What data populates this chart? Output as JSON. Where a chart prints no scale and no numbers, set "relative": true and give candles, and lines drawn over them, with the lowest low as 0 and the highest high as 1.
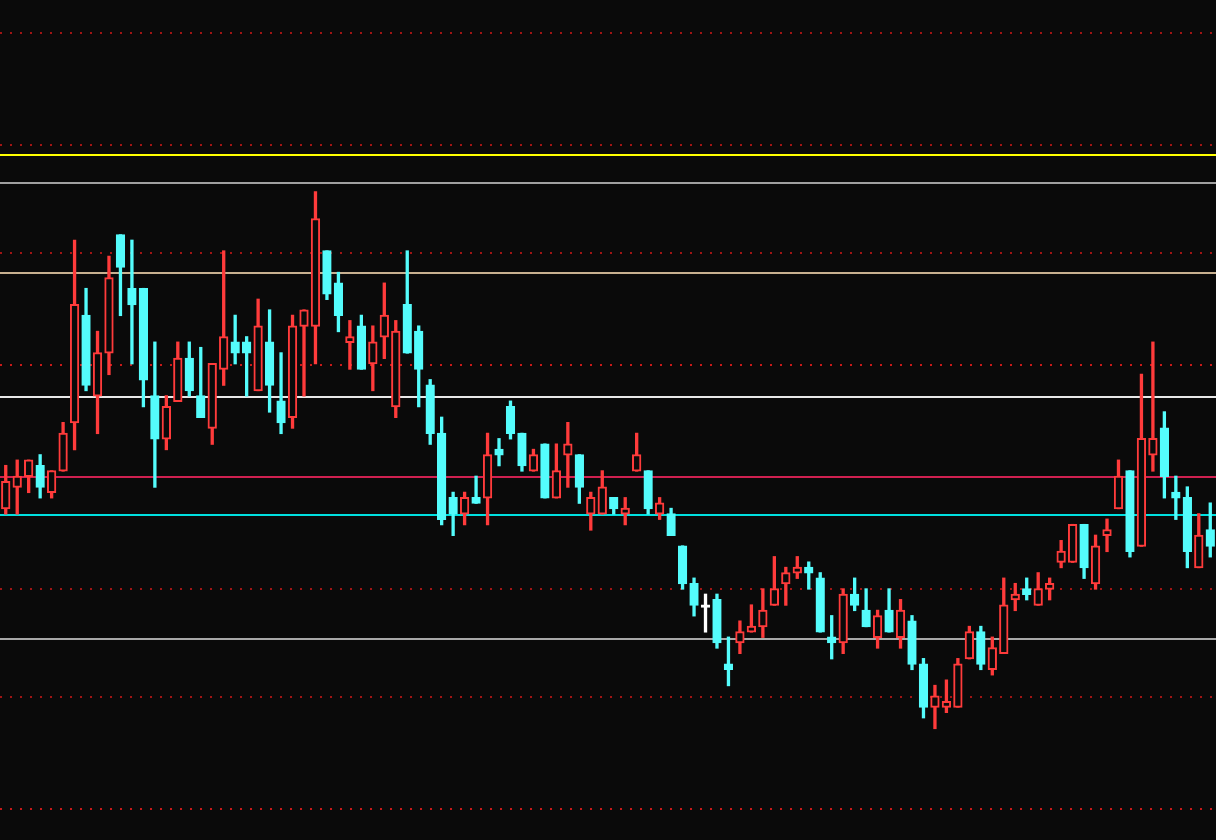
{
  "chart_data": {
    "type": "candlestick",
    "relative": true,
    "categories": [
      null,
      null,
      null,
      null,
      null,
      null,
      null,
      null,
      null,
      null,
      null,
      null,
      null,
      null,
      null,
      null,
      null,
      null,
      null,
      null,
      null,
      null,
      null,
      null,
      null,
      null,
      null,
      null,
      null,
      null,
      null,
      null,
      null,
      null,
      null,
      null,
      null,
      null,
      null,
      null,
      null,
      null,
      null,
      null,
      null,
      null,
      null,
      null,
      null,
      null,
      null,
      null,
      null,
      null,
      null,
      null,
      null,
      null,
      null,
      null,
      null,
      null,
      null,
      null,
      null,
      null,
      null,
      null,
      null,
      null,
      null,
      null,
      null,
      null,
      null,
      null,
      null,
      null,
      null,
      null,
      null,
      null,
      null,
      null,
      null,
      null,
      null,
      null,
      null,
      null,
      null,
      null,
      null,
      null,
      null,
      null,
      null,
      null,
      null,
      null,
      null,
      null,
      null,
      null,
      null,
      null
    ],
    "ohlc": [
      [
        0.41,
        0.49,
        0.4,
        0.46
      ],
      [
        0.45,
        0.5,
        0.4,
        0.47
      ],
      [
        0.47,
        0.5,
        0.44,
        0.5
      ],
      [
        0.49,
        0.51,
        0.43,
        0.45
      ],
      [
        0.44,
        0.48,
        0.43,
        0.48
      ],
      [
        0.48,
        0.57,
        0.48,
        0.55
      ],
      [
        0.57,
        0.91,
        0.52,
        0.79
      ],
      [
        0.77,
        0.82,
        0.63,
        0.64
      ],
      [
        0.62,
        0.74,
        0.55,
        0.7
      ],
      [
        0.7,
        0.88,
        0.66,
        0.84
      ],
      [
        0.92,
        0.92,
        0.77,
        0.86
      ],
      [
        0.82,
        0.91,
        0.68,
        0.79
      ],
      [
        0.82,
        0.82,
        0.6,
        0.65
      ],
      [
        0.62,
        0.72,
        0.45,
        0.54
      ],
      [
        0.54,
        0.62,
        0.52,
        0.6
      ],
      [
        0.61,
        0.72,
        0.61,
        0.69
      ],
      [
        0.69,
        0.72,
        0.62,
        0.63
      ],
      [
        0.62,
        0.71,
        0.58,
        0.58
      ],
      [
        0.56,
        0.68,
        0.53,
        0.68
      ],
      [
        0.67,
        0.89,
        0.64,
        0.73
      ],
      [
        0.72,
        0.77,
        0.68,
        0.7
      ],
      [
        0.72,
        0.73,
        0.62,
        0.7
      ],
      [
        0.63,
        0.8,
        0.63,
        0.75
      ],
      [
        0.72,
        0.78,
        0.59,
        0.64
      ],
      [
        0.61,
        0.7,
        0.55,
        0.57
      ],
      [
        0.58,
        0.77,
        0.56,
        0.75
      ],
      [
        0.75,
        0.78,
        0.62,
        0.78
      ],
      [
        0.75,
        1,
        0.68,
        0.95
      ],
      [
        0.89,
        0.89,
        0.8,
        0.81
      ],
      [
        0.83,
        0.85,
        0.74,
        0.77
      ],
      [
        0.72,
        0.76,
        0.67,
        0.73
      ],
      [
        0.75,
        0.77,
        0.67,
        0.67
      ],
      [
        0.68,
        0.75,
        0.63,
        0.72
      ],
      [
        0.73,
        0.83,
        0.69,
        0.77
      ],
      [
        0.6,
        0.76,
        0.58,
        0.74
      ],
      [
        0.79,
        0.89,
        0.7,
        0.7
      ],
      [
        0.74,
        0.75,
        0.6,
        0.67
      ],
      [
        0.64,
        0.65,
        0.53,
        0.55
      ],
      [
        0.55,
        0.58,
        0.38,
        0.39
      ],
      [
        0.43,
        0.44,
        0.36,
        0.4
      ],
      [
        0.4,
        0.44,
        0.38,
        0.43
      ],
      [
        0.43,
        0.47,
        0.42,
        0.42
      ],
      [
        0.43,
        0.55,
        0.38,
        0.51
      ],
      [
        0.52,
        0.54,
        0.49,
        0.51
      ],
      [
        0.6,
        0.61,
        0.54,
        0.55
      ],
      [
        0.55,
        0.55,
        0.48,
        0.49
      ],
      [
        0.48,
        0.52,
        0.48,
        0.51
      ],
      [
        0.53,
        0.53,
        0.43,
        0.43
      ],
      [
        0.43,
        0.53,
        0.43,
        0.48
      ],
      [
        0.51,
        0.57,
        0.45,
        0.53
      ],
      [
        0.51,
        0.51,
        0.42,
        0.45
      ],
      [
        0.4,
        0.44,
        0.37,
        0.43
      ],
      [
        0.4,
        0.48,
        0.4,
        0.45
      ],
      [
        0.43,
        0.43,
        0.4,
        0.41
      ],
      [
        0.4,
        0.43,
        0.38,
        0.41
      ],
      [
        0.48,
        0.55,
        0.48,
        0.51
      ],
      [
        0.48,
        0.48,
        0.4,
        0.41
      ],
      [
        0.4,
        0.43,
        0.39,
        0.42
      ],
      [
        0.4,
        0.41,
        0.36,
        0.36
      ],
      [
        0.34,
        0.34,
        0.26,
        0.27
      ],
      [
        0.27,
        0.28,
        0.21,
        0.23
      ],
      [
        0.23,
        0.25,
        0.18,
        0.23
      ],
      [
        0.24,
        0.25,
        0.15,
        0.16
      ],
      [
        0.12,
        0.17,
        0.08,
        0.11
      ],
      [
        0.16,
        0.2,
        0.14,
        0.18
      ],
      [
        0.18,
        0.23,
        0.18,
        0.19
      ],
      [
        0.19,
        0.26,
        0.17,
        0.22
      ],
      [
        0.23,
        0.32,
        0.23,
        0.26
      ],
      [
        0.27,
        0.3,
        0.23,
        0.29
      ],
      [
        0.29,
        0.32,
        0.28,
        0.3
      ],
      [
        0.3,
        0.31,
        0.26,
        0.29
      ],
      [
        0.28,
        0.29,
        0.18,
        0.18
      ],
      [
        0.17,
        0.21,
        0.13,
        0.16
      ],
      [
        0.16,
        0.26,
        0.14,
        0.25
      ],
      [
        0.25,
        0.28,
        0.22,
        0.23
      ],
      [
        0.22,
        0.26,
        0.19,
        0.19
      ],
      [
        0.17,
        0.22,
        0.15,
        0.21
      ],
      [
        0.22,
        0.26,
        0.18,
        0.18
      ],
      [
        0.17,
        0.24,
        0.15,
        0.22
      ],
      [
        0.2,
        0.21,
        0.11,
        0.12
      ],
      [
        0.12,
        0.13,
        0.02,
        0.04
      ],
      [
        0.04,
        0.08,
        0,
        0.06
      ],
      [
        0.04,
        0.09,
        0.03,
        0.05
      ],
      [
        0.04,
        0.13,
        0.04,
        0.12
      ],
      [
        0.13,
        0.19,
        0.13,
        0.18
      ],
      [
        0.18,
        0.19,
        0.11,
        0.12
      ],
      [
        0.11,
        0.17,
        0.1,
        0.15
      ],
      [
        0.14,
        0.28,
        0.14,
        0.23
      ],
      [
        0.24,
        0.27,
        0.22,
        0.25
      ],
      [
        0.26,
        0.28,
        0.24,
        0.25
      ],
      [
        0.23,
        0.29,
        0.23,
        0.26
      ],
      [
        0.26,
        0.28,
        0.24,
        0.27
      ],
      [
        0.31,
        0.35,
        0.3,
        0.33
      ],
      [
        0.31,
        0.38,
        0.31,
        0.38
      ],
      [
        0.38,
        0.38,
        0.28,
        0.3
      ],
      [
        0.27,
        0.36,
        0.26,
        0.34
      ],
      [
        0.36,
        0.39,
        0.33,
        0.37
      ],
      [
        0.41,
        0.5,
        0.41,
        0.47
      ],
      [
        0.48,
        0.48,
        0.32,
        0.33
      ],
      [
        0.34,
        0.66,
        0.34,
        0.54
      ],
      [
        0.51,
        0.72,
        0.48,
        0.54
      ],
      [
        0.56,
        0.59,
        0.43,
        0.47
      ],
      [
        0.44,
        0.47,
        0.39,
        0.43
      ],
      [
        0.43,
        0.45,
        0.3,
        0.33
      ],
      [
        0.3,
        0.4,
        0.3,
        0.36
      ],
      [
        0.37,
        0.42,
        0.32,
        0.34
      ]
    ],
    "colors": [
      "#ff3b3b",
      "#ff3b3b",
      "#ff3b3b",
      "#54fcfc",
      "#ff3b3b",
      "#ff3b3b",
      "#ff3b3b",
      "#54fcfc",
      "#ff3b3b",
      "#ff3b3b",
      "#54fcfc",
      "#54fcfc",
      "#54fcfc",
      "#54fcfc",
      "#ff3b3b",
      "#ff3b3b",
      "#54fcfc",
      "#54fcfc",
      "#ff3b3b",
      "#ff3b3b",
      "#54fcfc",
      "#54fcfc",
      "#ff3b3b",
      "#54fcfc",
      "#54fcfc",
      "#ff3b3b",
      "#ff3b3b",
      "#ff3b3b",
      "#54fcfc",
      "#54fcfc",
      "#ff3b3b",
      "#54fcfc",
      "#ff3b3b",
      "#ff3b3b",
      "#ff3b3b",
      "#54fcfc",
      "#54fcfc",
      "#54fcfc",
      "#54fcfc",
      "#54fcfc",
      "#ff3b3b",
      "#54fcfc",
      "#ff3b3b",
      "#54fcfc",
      "#54fcfc",
      "#54fcfc",
      "#ff3b3b",
      "#54fcfc",
      "#ff3b3b",
      "#ff3b3b",
      "#54fcfc",
      "#ff3b3b",
      "#ff3b3b",
      "#54fcfc",
      "#ff3b3b",
      "#ff3b3b",
      "#54fcfc",
      "#ff3b3b",
      "#54fcfc",
      "#54fcfc",
      "#54fcfc",
      "#ffffff",
      "#54fcfc",
      "#54fcfc",
      "#ff3b3b",
      "#ff3b3b",
      "#ff3b3b",
      "#ff3b3b",
      "#ff3b3b",
      "#ff3b3b",
      "#54fcfc",
      "#54fcfc",
      "#54fcfc",
      "#ff3b3b",
      "#54fcfc",
      "#54fcfc",
      "#ff3b3b",
      "#54fcfc",
      "#ff3b3b",
      "#54fcfc",
      "#54fcfc",
      "#ff3b3b",
      "#ff3b3b",
      "#ff3b3b",
      "#ff3b3b",
      "#54fcfc",
      "#ff3b3b",
      "#ff3b3b",
      "#ff3b3b",
      "#54fcfc",
      "#ff3b3b",
      "#ff3b3b",
      "#ff3b3b",
      "#ff3b3b",
      "#54fcfc",
      "#ff3b3b",
      "#ff3b3b",
      "#ff3b3b",
      "#54fcfc",
      "#ff3b3b",
      "#ff3b3b",
      "#54fcfc",
      "#54fcfc",
      "#54fcfc",
      "#ff3b3b",
      "#54fcfc"
    ],
    "ref_lines": [
      {
        "axis": "y",
        "value": 1.3,
        "color": "#a01414",
        "line_style": "dotted"
      },
      {
        "axis": "y",
        "value": 1.09,
        "color": "#a01414",
        "line_style": "dotted"
      },
      {
        "axis": "y",
        "value": 1.07,
        "color": "#ffff00",
        "line_style": "solid"
      },
      {
        "axis": "y",
        "value": 1.02,
        "color": "#a0a0a0",
        "line_style": "solid"
      },
      {
        "axis": "y",
        "value": 0.89,
        "color": "#a01414",
        "line_style": "dotted"
      },
      {
        "axis": "y",
        "value": 0.85,
        "color": "#c8b090",
        "line_style": "solid"
      },
      {
        "axis": "y",
        "value": 0.68,
        "color": "#c81818",
        "line_style": "dotted"
      },
      {
        "axis": "y",
        "value": 0.62,
        "color": "#e8e8e8",
        "line_style": "solid"
      },
      {
        "axis": "y",
        "value": 0.47,
        "color": "#d02050",
        "line_style": "solid"
      },
      {
        "axis": "y",
        "value": 0.4,
        "color": "#00e0e0",
        "line_style": "solid"
      },
      {
        "axis": "y",
        "value": 0.26,
        "color": "#a01414",
        "line_style": "dotted"
      },
      {
        "axis": "y",
        "value": 0.17,
        "color": "#a8a8a8",
        "line_style": "solid"
      },
      {
        "axis": "y",
        "value": 0.06,
        "color": "#a01414",
        "line_style": "dotted"
      },
      {
        "axis": "y",
        "value": -0.15,
        "color": "#c81818",
        "line_style": "dotted"
      }
    ]
  }
}
